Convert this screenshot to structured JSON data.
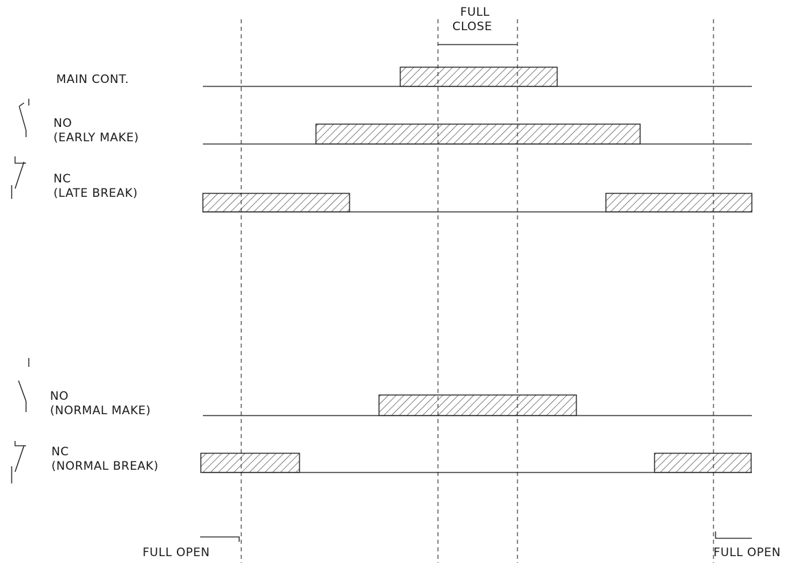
{
  "colors": {
    "ink": "#1a1a1a",
    "hatch": "#333333",
    "background": "#ffffff"
  },
  "header": {
    "full_close_line1": "FULL",
    "full_close_line2": "CLOSE"
  },
  "footer": {
    "full_open_left": "FULL OPEN",
    "full_open_right": "FULL OPEN"
  },
  "rows": [
    {
      "id": "main-cont",
      "label_line1": "MAIN CONT.",
      "label_line2": "",
      "symbol": "none"
    },
    {
      "id": "no-early-make",
      "label_line1": "NO",
      "label_line2": "(EARLY MAKE)",
      "symbol": "no-contact-early-icon"
    },
    {
      "id": "nc-late-break",
      "label_line1": "NC",
      "label_line2": "(LATE BREAK)",
      "symbol": "nc-contact-late-icon"
    },
    {
      "id": "no-normal-make",
      "label_line1": "NO",
      "label_line2": "(NORMAL MAKE)",
      "symbol": "no-contact-icon"
    },
    {
      "id": "nc-normal-break",
      "label_line1": "NC",
      "label_line2": "(NORMAL BREAK)",
      "symbol": "nc-contact-icon"
    }
  ]
}
